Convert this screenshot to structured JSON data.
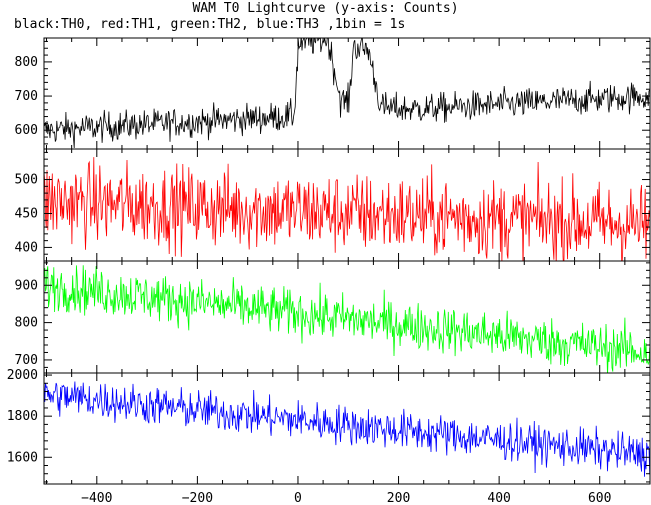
{
  "title": "WAM T0 Lightcurve (y-axis: Counts)",
  "subtitle": "black:TH0, red:TH1, green:TH2, blue:TH3 ,1bin = 1s",
  "chart_data": {
    "type": "line",
    "title": "WAM T0 Lightcurve (y-axis: Counts)",
    "subtitle": "black:TH0, red:TH1, green:TH2, blue:TH3 ,1bin = 1s",
    "ylabel": "Counts",
    "bin_seconds": 1,
    "x_range": [
      -505,
      700
    ],
    "x_ticks": [
      -400,
      -200,
      0,
      200,
      400,
      600
    ],
    "x_tick_labels": [
      "−400",
      "−200",
      "0",
      "200",
      "400",
      "600"
    ],
    "grid": false,
    "panels": [
      {
        "series": "TH0",
        "color": "#000000",
        "ylim": [
          545,
          870
        ],
        "y_ticks": [
          600,
          700,
          800
        ],
        "y_tick_labels": [
          "600",
          "700",
          "800"
        ],
        "baseline_start": 600,
        "baseline_end": 700,
        "noise": 22,
        "features": [
          {
            "type": "burst_peak",
            "x_start": 0,
            "x_end": 60,
            "peak": 840
          },
          {
            "type": "burst_peak",
            "x_start": 110,
            "x_end": 140,
            "peak": 830
          }
        ]
      },
      {
        "series": "TH1",
        "color": "#ff0000",
        "ylim": [
          380,
          545
        ],
        "y_ticks": [
          400,
          450,
          500
        ],
        "y_tick_labels": [
          "400",
          "450",
          "500"
        ],
        "baseline_start": 468,
        "baseline_end": 433,
        "noise": 30
      },
      {
        "series": "TH2",
        "color": "#00ff00",
        "ylim": [
          665,
          965
        ],
        "y_ticks": [
          700,
          800,
          900
        ],
        "y_tick_labels": [
          "700",
          "800",
          "900"
        ],
        "baseline_start": 900,
        "baseline_end": 720,
        "noise": 32
      },
      {
        "series": "TH3",
        "color": "#0000ff",
        "ylim": [
          1470,
          2010
        ],
        "y_ticks": [
          1600,
          1800,
          2000
        ],
        "y_tick_labels": [
          "1600",
          "1800",
          "2000"
        ],
        "baseline_start": 1905,
        "baseline_end": 1610,
        "noise": 48
      }
    ]
  }
}
